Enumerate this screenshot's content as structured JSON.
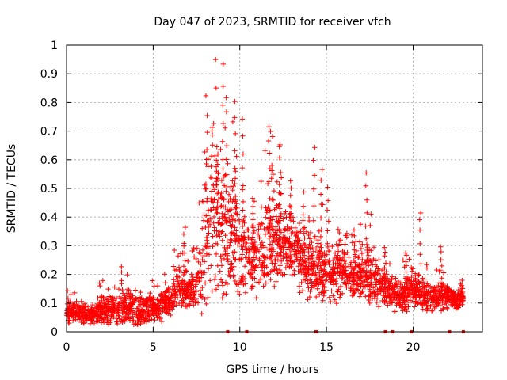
{
  "chart_data": {
    "type": "scatter",
    "title": "Day 047 of 2023, SRMTID for receiver vfch",
    "xlabel": "GPS time / hours",
    "ylabel": "SRMTID / TECUs",
    "xlim": [
      0,
      24
    ],
    "ylim": [
      0,
      1
    ],
    "xticks": [
      0,
      5,
      10,
      15,
      20
    ],
    "xtick_labels": [
      "0",
      "5",
      "10",
      "15",
      "20"
    ],
    "yticks": [
      0,
      0.1,
      0.2,
      0.3,
      0.4,
      0.5,
      0.6,
      0.7,
      0.8,
      0.9,
      1
    ],
    "ytick_labels": [
      "0",
      "0.1",
      "0.2",
      "0.3",
      "0.4",
      "0.5",
      "0.6",
      "0.7",
      "0.8",
      "0.9",
      "1"
    ],
    "grid": true,
    "marker": "+",
    "color": "#ff0000",
    "envelope": {
      "description": "approximate median and upper spread of the scatter, in data units",
      "x": [
        0,
        0.5,
        1,
        1.5,
        2,
        2.5,
        3,
        3.5,
        4,
        4.5,
        5,
        5.5,
        6,
        6.5,
        7,
        7.5,
        8,
        8.5,
        9,
        9.5,
        10,
        10.5,
        11,
        11.5,
        12,
        12.5,
        13,
        13.5,
        14,
        14.5,
        15,
        15.5,
        16,
        16.5,
        17,
        17.5,
        18,
        18.5,
        19,
        19.5,
        20,
        20.5,
        21,
        21.5,
        22,
        22.5,
        22.9
      ],
      "median": [
        0.07,
        0.07,
        0.065,
        0.06,
        0.075,
        0.08,
        0.07,
        0.085,
        0.07,
        0.075,
        0.085,
        0.09,
        0.11,
        0.16,
        0.14,
        0.15,
        0.3,
        0.45,
        0.4,
        0.35,
        0.3,
        0.25,
        0.25,
        0.3,
        0.35,
        0.3,
        0.3,
        0.25,
        0.22,
        0.23,
        0.2,
        0.2,
        0.22,
        0.18,
        0.19,
        0.2,
        0.17,
        0.15,
        0.12,
        0.13,
        0.15,
        0.13,
        0.12,
        0.12,
        0.13,
        0.11,
        0.12
      ],
      "spread": [
        0.03,
        0.03,
        0.03,
        0.03,
        0.04,
        0.04,
        0.04,
        0.05,
        0.04,
        0.04,
        0.04,
        0.04,
        0.05,
        0.07,
        0.05,
        0.06,
        0.2,
        0.25,
        0.25,
        0.2,
        0.15,
        0.1,
        0.1,
        0.15,
        0.15,
        0.12,
        0.1,
        0.1,
        0.1,
        0.1,
        0.08,
        0.08,
        0.07,
        0.06,
        0.08,
        0.1,
        0.06,
        0.05,
        0.04,
        0.05,
        0.06,
        0.05,
        0.04,
        0.04,
        0.04,
        0.03,
        0.03
      ]
    },
    "spikes": [
      {
        "x": 3.2,
        "y": 0.22
      },
      {
        "x": 6.8,
        "y": 0.36
      },
      {
        "x": 8.1,
        "y": 0.82
      },
      {
        "x": 8.4,
        "y": 0.72
      },
      {
        "x": 8.7,
        "y": 0.65
      },
      {
        "x": 9.0,
        "y": 0.93
      },
      {
        "x": 9.2,
        "y": 0.82
      },
      {
        "x": 9.7,
        "y": 0.81
      },
      {
        "x": 10.2,
        "y": 0.74
      },
      {
        "x": 10.8,
        "y": 0.44
      },
      {
        "x": 11.7,
        "y": 0.72
      },
      {
        "x": 12.3,
        "y": 0.64
      },
      {
        "x": 12.9,
        "y": 0.53
      },
      {
        "x": 13.7,
        "y": 0.43
      },
      {
        "x": 14.3,
        "y": 0.65
      },
      {
        "x": 14.7,
        "y": 0.57
      },
      {
        "x": 15.1,
        "y": 0.5
      },
      {
        "x": 15.7,
        "y": 0.36
      },
      {
        "x": 16.6,
        "y": 0.35
      },
      {
        "x": 17.3,
        "y": 0.55
      },
      {
        "x": 18.4,
        "y": 0.3
      },
      {
        "x": 19.6,
        "y": 0.28
      },
      {
        "x": 20.4,
        "y": 0.42
      },
      {
        "x": 21.6,
        "y": 0.3
      },
      {
        "x": 22.8,
        "y": 0.13
      }
    ],
    "data_gaps_x": [
      9.3,
      10.4,
      14.4,
      18.4,
      18.8,
      19.9,
      22.1,
      22.9
    ]
  }
}
